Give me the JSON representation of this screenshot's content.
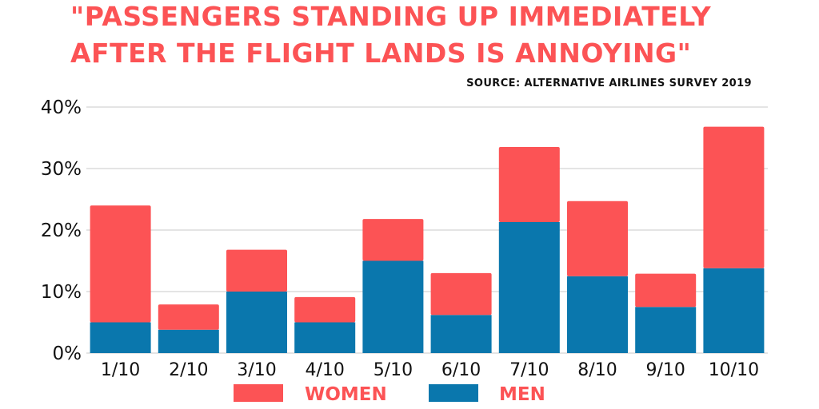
{
  "chart_data": {
    "type": "bar",
    "stacked": true,
    "title_lines": [
      "\"PASSENGERS STANDING UP IMMEDIATELY",
      "AFTER THE FLIGHT LANDS IS ANNOYING\""
    ],
    "source": "SOURCE: ALTERNATIVE AIRLINES SURVEY 2019",
    "categories": [
      "1/10",
      "2/10",
      "3/10",
      "4/10",
      "5/10",
      "6/10",
      "7/10",
      "8/10",
      "9/10",
      "10/10"
    ],
    "series": [
      {
        "name": "MEN",
        "color": "#0a77ad",
        "values": [
          5,
          3.8,
          10,
          5,
          15,
          6.2,
          21.3,
          12.5,
          7.5,
          13.8
        ]
      },
      {
        "name": "WOMEN",
        "color": "#fc5355",
        "values": [
          19,
          4.1,
          6.8,
          4.1,
          6.8,
          6.8,
          12.2,
          12.2,
          5.4,
          23
        ]
      }
    ],
    "ylim": [
      0,
      40
    ],
    "yticks": [
      0,
      10,
      20,
      30,
      40
    ],
    "ytick_labels": [
      "0%",
      "10%",
      "20%",
      "30%",
      "40%"
    ],
    "xlabel": "",
    "ylabel": "",
    "grid": true,
    "legend_position": "bottom",
    "legend": [
      {
        "name": "WOMEN",
        "color": "#fc5355"
      },
      {
        "name": "MEN",
        "color": "#0a77ad"
      }
    ],
    "title_color": "#fc5355",
    "source_color": "#111111"
  }
}
